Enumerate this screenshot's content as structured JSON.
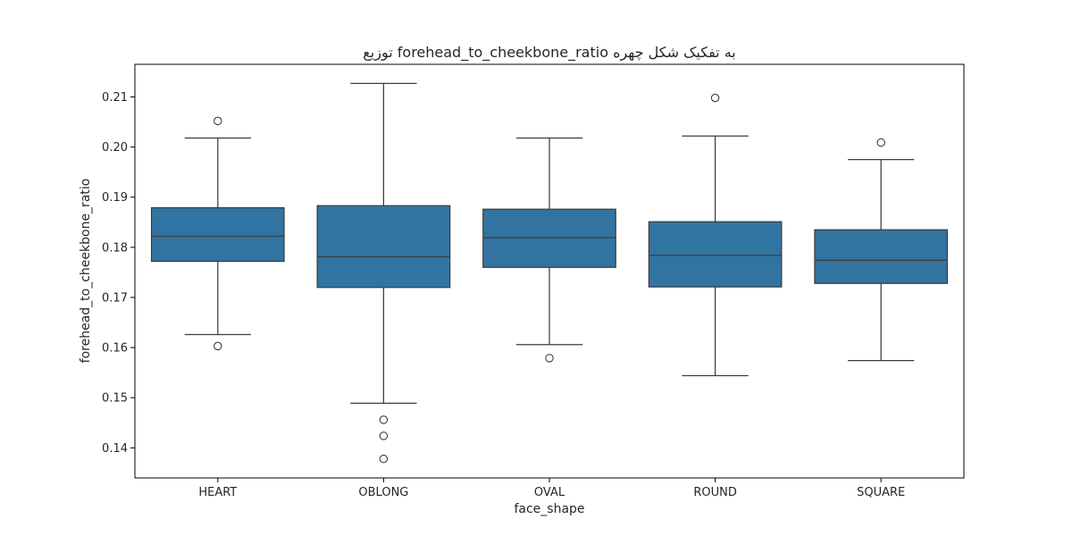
{
  "chart_data": {
    "type": "box",
    "title": "توزیع forehead_to_cheekbone_ratio به تفکیک شکل چهره",
    "xlabel": "face_shape",
    "ylabel": "forehead_to_cheekbone_ratio",
    "ylim": [
      0.134,
      0.2165
    ],
    "yticks": [
      "0.14",
      "0.15",
      "0.16",
      "0.17",
      "0.18",
      "0.19",
      "0.20",
      "0.21"
    ],
    "grid": false,
    "color": "#3274a1",
    "categories": [
      "HEART",
      "OBLONG",
      "OVAL",
      "ROUND",
      "SQUARE"
    ],
    "boxes": [
      {
        "category": "HEART",
        "whisker_low": 0.1626,
        "q1": 0.1772,
        "median": 0.1822,
        "q3": 0.1879,
        "whisker_high": 0.2018,
        "outliers": [
          0.2052,
          0.1603
        ]
      },
      {
        "category": "OBLONG",
        "whisker_low": 0.1489,
        "q1": 0.172,
        "median": 0.1781,
        "q3": 0.1883,
        "whisker_high": 0.2127,
        "outliers": [
          0.1456,
          0.1424,
          0.1378
        ]
      },
      {
        "category": "OVAL",
        "whisker_low": 0.1606,
        "q1": 0.176,
        "median": 0.1819,
        "q3": 0.1876,
        "whisker_high": 0.2018,
        "outliers": [
          0.1579
        ]
      },
      {
        "category": "ROUND",
        "whisker_low": 0.1544,
        "q1": 0.1721,
        "median": 0.1784,
        "q3": 0.1851,
        "whisker_high": 0.2022,
        "outliers": [
          0.2098
        ]
      },
      {
        "category": "SQUARE",
        "whisker_low": 0.1574,
        "q1": 0.1728,
        "median": 0.1774,
        "q3": 0.1835,
        "whisker_high": 0.1975,
        "outliers": [
          0.2009
        ]
      }
    ]
  }
}
